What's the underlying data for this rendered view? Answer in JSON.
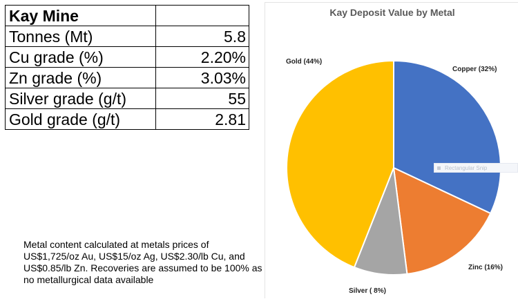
{
  "table": {
    "title": "Kay Mine",
    "rows": [
      {
        "label": "Tonnes (Mt)",
        "value": "5.8"
      },
      {
        "label": "Cu grade (%)",
        "value": "2.20%"
      },
      {
        "label": "Zn grade (%)",
        "value": "3.03%"
      },
      {
        "label": "Silver grade (g/t)",
        "value": "55"
      },
      {
        "label": "Gold grade (g/t)",
        "value": "2.81"
      }
    ]
  },
  "note": "Metal content calculated at metals prices of US$1,725/oz Au, US$15/oz Ag, US$2.30/lb Cu, and US$0.85/lb Zn. Recoveries are assumed to be 100% as no metallurgical data available",
  "overlay_label": "Rectangular Snip",
  "chart_data": {
    "type": "pie",
    "title": "Kay Deposit Value by Metal",
    "slices": [
      {
        "name": "Copper",
        "value": 32,
        "label": "Copper (32%)",
        "color": "#4472C4"
      },
      {
        "name": "Zinc",
        "value": 16,
        "label": "Zinc (16%)",
        "color": "#ED7D31"
      },
      {
        "name": "Silver",
        "value": 8,
        "label": "Silver ( 8%)",
        "color": "#A5A5A5"
      },
      {
        "name": "Gold",
        "value": 44,
        "label": "Gold (44%)",
        "color": "#FFC000"
      }
    ]
  }
}
